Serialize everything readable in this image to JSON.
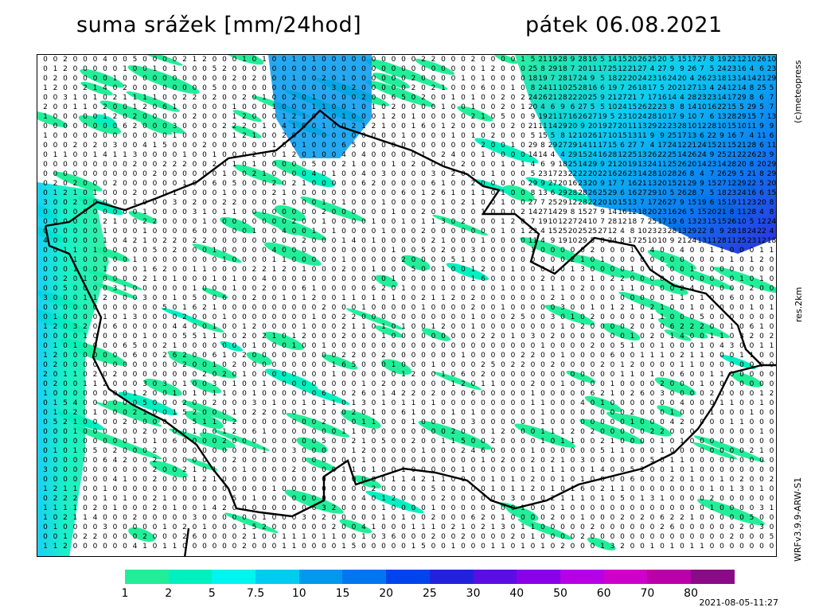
{
  "header": {
    "title": "suma srážek [mm/24hod]",
    "date": "pátek 06.08.2021"
  },
  "side_labels": {
    "credit": "(c)meteopress",
    "resolution": "res.2km",
    "model": "WRFv3.9.9-ARW-S1"
  },
  "legend": {
    "labels": [
      "1",
      "2",
      "5",
      "7.5",
      "10",
      "15",
      "20",
      "25",
      "30",
      "40",
      "50",
      "60",
      "70",
      "80"
    ],
    "colors": [
      "#22ee99",
      "#00f0c0",
      "#00f5f0",
      "#00ccf2",
      "#0099ee",
      "#0077f0",
      "#0044ee",
      "#2222dd",
      "#5a0ee4",
      "#8a00e8",
      "#b800e6",
      "#d000cc",
      "#bb00aa",
      "#8a0a88"
    ]
  },
  "footer": {
    "timestamp": "2021-08-05-11:27"
  }
}
